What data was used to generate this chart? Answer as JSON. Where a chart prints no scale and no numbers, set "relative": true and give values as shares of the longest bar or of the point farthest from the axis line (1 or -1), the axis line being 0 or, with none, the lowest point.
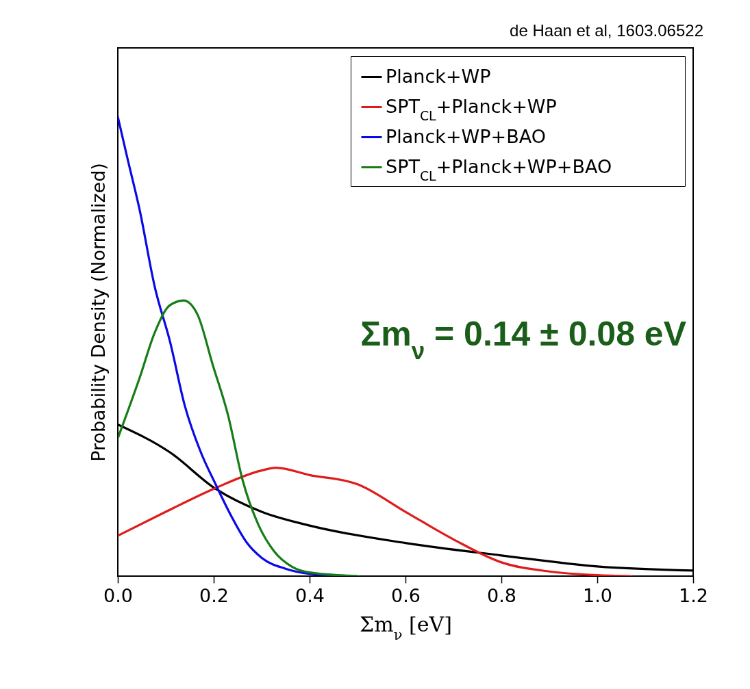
{
  "chart_data": {
    "type": "line",
    "relative": true,
    "xlabel": "Σm$_{ν}$ [eV]",
    "ylabel": "Probability Density (Normalized)",
    "xlim": [
      0,
      1.2
    ],
    "xticks": [
      {
        "value": 0,
        "label": "0.0"
      },
      {
        "value": 0.2,
        "label": "0.2"
      },
      {
        "value": 0.4,
        "label": "0.4"
      },
      {
        "value": 0.6,
        "label": "0.6"
      },
      {
        "value": 0.8,
        "label": "0.8"
      },
      {
        "value": 1.0,
        "label": "1.0"
      },
      {
        "value": 1.2,
        "label": "1.2"
      }
    ],
    "grid": false,
    "legend": "top right",
    "line_style": "solid",
    "annotations": [
      "de Haan et al, 1603.06522",
      "Σm$_{ν}$ = 0.14 ± 0.08 eV"
    ],
    "series": [
      {
        "name": "Planck+WP",
        "color": "#000000",
        "x": [
          0,
          0.108,
          0.204,
          0.3,
          0.4,
          0.6,
          0.8,
          1.0,
          1.2
        ],
        "values": [
          0.33,
          0.27,
          0.19,
          0.14,
          0.11,
          0.072,
          0.045,
          0.021,
          0.012
        ]
      },
      {
        "name": "SPT$_{CL}$+Planck+WP",
        "color": "#e01b1b",
        "x": [
          0,
          0.1,
          0.2,
          0.3,
          0.33,
          0.4,
          0.5,
          0.6,
          0.7,
          0.8,
          0.9,
          1.0,
          1.07
        ],
        "values": [
          0.088,
          0.14,
          0.19,
          0.23,
          0.236,
          0.22,
          0.2,
          0.14,
          0.08,
          0.03,
          0.01,
          0.002,
          0
        ]
      },
      {
        "name": "Planck+WP+BAO",
        "color": "#0a0ae6",
        "x": [
          0,
          0.02,
          0.045,
          0.077,
          0.109,
          0.14,
          0.173,
          0.204,
          0.237,
          0.269,
          0.3,
          0.35,
          0.4,
          0.5
        ],
        "values": [
          1,
          0.91,
          0.8,
          0.63,
          0.51,
          0.37,
          0.27,
          0.2,
          0.13,
          0.073,
          0.04,
          0.016,
          0.005,
          0
        ]
      },
      {
        "name": "SPT$_{CL}$+Planck+WP+BAO",
        "color": "#167d16",
        "x": [
          0,
          0.045,
          0.077,
          0.109,
          0.137,
          0.166,
          0.198,
          0.23,
          0.26,
          0.294,
          0.326,
          0.364,
          0.4,
          0.5
        ],
        "values": [
          0.3,
          0.43,
          0.53,
          0.59,
          0.6,
          0.57,
          0.46,
          0.35,
          0.21,
          0.11,
          0.054,
          0.02,
          0.008,
          0
        ]
      }
    ]
  }
}
